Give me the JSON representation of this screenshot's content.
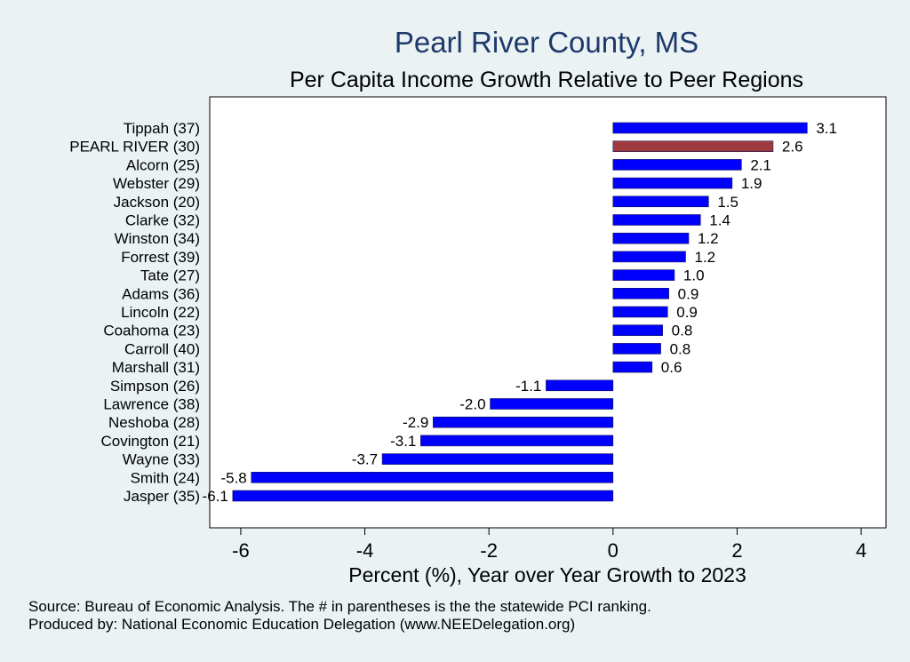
{
  "chart_data": {
    "type": "bar",
    "orientation": "horizontal",
    "title": "Pearl River County, MS",
    "subtitle": "Per Capita Income Growth Relative to Peer Regions",
    "xlabel": "Percent (%), Year over Year Growth to 2023",
    "xlim": [
      -6.5,
      4.4
    ],
    "xticks": [
      -6,
      -4,
      -2,
      0,
      2,
      4
    ],
    "xtick_labels": [
      "-6",
      "-4",
      "-2",
      "0",
      "2",
      "4"
    ],
    "grid": false,
    "categories": [
      "Tippah (37)",
      "PEARL RIVER (30)",
      "Alcorn (25)",
      "Webster (29)",
      "Jackson (20)",
      "Clarke (32)",
      "Winston (34)",
      "Forrest (39)",
      "Tate (27)",
      "Adams (36)",
      "Lincoln (22)",
      "Coahoma (23)",
      "Carroll (40)",
      "Marshall (31)",
      "Simpson (26)",
      "Lawrence (38)",
      "Neshoba (28)",
      "Covington (21)",
      "Wayne (33)",
      "Smith (24)",
      "Jasper (35)"
    ],
    "values": [
      3.13,
      2.58,
      2.07,
      1.92,
      1.54,
      1.41,
      1.22,
      1.17,
      0.99,
      0.9,
      0.88,
      0.8,
      0.77,
      0.63,
      -1.08,
      -1.98,
      -2.9,
      -3.1,
      -3.72,
      -5.83,
      -6.13
    ],
    "value_labels": [
      "3.1",
      "2.6",
      "2.1",
      "1.9",
      "1.5",
      "1.4",
      "1.2",
      "1.2",
      "1.0",
      "0.9",
      "0.9",
      "0.8",
      "0.8",
      "0.6",
      "-1.1",
      "-2.0",
      "-2.9",
      "-3.1",
      "-3.7",
      "-5.8",
      "-6.1"
    ],
    "highlight_index": 1,
    "colors": {
      "bar": "#0000ff",
      "highlight": "#9e3a3e",
      "background": "#eaf2f3",
      "plot_background": "#ffffff",
      "title": "#1e3a6b"
    }
  },
  "footer": {
    "source": "Source: Bureau of Economic Analysis. The # in parentheses is the the statewide PCI ranking.",
    "produced_by": "Produced by: National Economic Education Delegation (www.NEEDelegation.org)"
  }
}
